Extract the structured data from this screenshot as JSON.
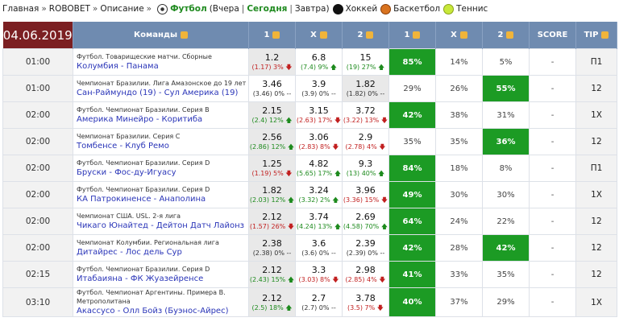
{
  "breadcrumbs": {
    "home": "Главная",
    "site": "ROBOBET",
    "desc": "Описание",
    "football": "Футбол",
    "yesterday": "Вчера",
    "today": "Сегодня",
    "tomorrow": "Завтра",
    "hockey": "Хоккей",
    "basketball": "Баскетбол",
    "tennis": "Теннис",
    "sep": "»",
    "bar": "|",
    "lparen": "(",
    "rparen": ")"
  },
  "header": {
    "date": "04.06.2019",
    "teams": "Команды",
    "o1": "1",
    "ox": "X",
    "o2": "2",
    "p1": "1",
    "px": "X",
    "p2": "2",
    "score": "SCORE",
    "tip": "TIP"
  },
  "rows": [
    {
      "time": "01:00",
      "league": "Футбол. Товарищеские матчи. Сборные",
      "teams": "Колумбия - Панама",
      "o1": "1.2",
      "o1s": "(1.17) 3%",
      "o1d": "down",
      "ox": "6.8",
      "oxs": "(7.4) 9%",
      "oxd": "up",
      "o2": "15",
      "o2s": "(19) 27%",
      "o2d": "up",
      "p1": "85%",
      "px": "14%",
      "p2": "5%",
      "hl": "1",
      "score": "-",
      "tip": "П1",
      "fav": "1"
    },
    {
      "time": "01:00",
      "league": "Чемпионат Бразилии. Лига Амазонское до 19 лет",
      "teams": "Сан-Раймундо (19) - Сул Америка (19)",
      "o1": "3.46",
      "o1s": "(3.46) 0% --",
      "o1d": "flat",
      "ox": "3.9",
      "oxs": "(3.9) 0% --",
      "oxd": "flat",
      "o2": "1.82",
      "o2s": "(1.82) 0% --",
      "o2d": "flat",
      "p1": "29%",
      "px": "26%",
      "p2": "55%",
      "hl": "2",
      "score": "-",
      "tip": "12",
      "fav": "2"
    },
    {
      "time": "02:00",
      "league": "Футбол. Чемпионат Бразилии. Серия B",
      "teams": "Америка Минейро - Коритиба",
      "o1": "2.15",
      "o1s": "(2.4) 12%",
      "o1d": "up",
      "ox": "3.15",
      "oxs": "(2.63) 17%",
      "oxd": "down",
      "o2": "3.72",
      "o2s": "(3.22) 13%",
      "o2d": "down",
      "p1": "42%",
      "px": "38%",
      "p2": "31%",
      "hl": "1",
      "score": "-",
      "tip": "1X",
      "fav": "1"
    },
    {
      "time": "02:00",
      "league": "Чемпионат Бразилии. Серия C",
      "teams": "Томбенсе - Клуб Ремо",
      "o1": "2.56",
      "o1s": "(2.86) 12%",
      "o1d": "up",
      "ox": "3.06",
      "oxs": "(2.83) 8%",
      "oxd": "down",
      "o2": "2.9",
      "o2s": "(2.78) 4%",
      "o2d": "down",
      "p1": "35%",
      "px": "35%",
      "p2": "36%",
      "hl": "2",
      "score": "-",
      "tip": "12",
      "fav": "1"
    },
    {
      "time": "02:00",
      "league": "Футбол. Чемпионат Бразилии. Серия D",
      "teams": "Бруски - Фос-ду-Игуасу",
      "o1": "1.25",
      "o1s": "(1.19) 5%",
      "o1d": "down",
      "ox": "4.82",
      "oxs": "(5.65) 17%",
      "oxd": "up",
      "o2": "9.3",
      "o2s": "(13) 40%",
      "o2d": "up",
      "p1": "84%",
      "px": "18%",
      "p2": "8%",
      "hl": "1",
      "score": "-",
      "tip": "П1",
      "fav": "1"
    },
    {
      "time": "02:00",
      "league": "Футбол. Чемпионат Бразилии. Серия D",
      "teams": "КА Патрокиненсе - Анаполина",
      "o1": "1.82",
      "o1s": "(2.03) 12%",
      "o1d": "up",
      "ox": "3.24",
      "oxs": "(3.32) 2%",
      "oxd": "up",
      "o2": "3.96",
      "o2s": "(3.36) 15%",
      "o2d": "down",
      "p1": "49%",
      "px": "30%",
      "p2": "30%",
      "hl": "1",
      "score": "-",
      "tip": "1X",
      "fav": "1"
    },
    {
      "time": "02:00",
      "league": "Чемпионат США. USL. 2-я лига",
      "teams": "Чикаго Юнайтед - Дейтон Датч Лайонз",
      "o1": "2.12",
      "o1s": "(1.57) 26%",
      "o1d": "down",
      "ox": "3.74",
      "oxs": "(4.24) 13%",
      "oxd": "up",
      "o2": "2.69",
      "o2s": "(4.58) 70%",
      "o2d": "up",
      "p1": "64%",
      "px": "24%",
      "p2": "22%",
      "hl": "1",
      "score": "-",
      "tip": "12",
      "fav": "1"
    },
    {
      "time": "02:00",
      "league": "Чемпионат Колумбии. Региональная лига",
      "teams": "Дитайрес - Лос дель Сур",
      "o1": "2.38",
      "o1s": "(2.38) 0% --",
      "o1d": "flat",
      "ox": "3.6",
      "oxs": "(3.6) 0% --",
      "oxd": "flat",
      "o2": "2.39",
      "o2s": "(2.39) 0% --",
      "o2d": "flat",
      "p1": "42%",
      "px": "28%",
      "p2": "42%",
      "hl": "12",
      "score": "-",
      "tip": "12",
      "fav": "1"
    },
    {
      "time": "02:15",
      "league": "Футбол. Чемпионат Бразилии. Серия D",
      "teams": "Итабаияна - ФК Жуазейренсе",
      "o1": "2.12",
      "o1s": "(2.43) 15%",
      "o1d": "up",
      "ox": "3.3",
      "oxs": "(3.03) 8%",
      "oxd": "down",
      "o2": "2.98",
      "o2s": "(2.85) 4%",
      "o2d": "down",
      "p1": "41%",
      "px": "33%",
      "p2": "35%",
      "hl": "1",
      "score": "-",
      "tip": "12",
      "fav": "1"
    },
    {
      "time": "03:10",
      "league": "Футбол. Чемпионат Аргентины. Примера B. Метрополитана",
      "teams": "Акассусо - Олл Бойз (Буэнос-Айрес)",
      "o1": "2.12",
      "o1s": "(2.5) 18%",
      "o1d": "up",
      "ox": "2.7",
      "oxs": "(2.7) 0% --",
      "oxd": "flat",
      "o2": "3.78",
      "o2s": "(3.5) 7%",
      "o2d": "down",
      "p1": "40%",
      "px": "37%",
      "p2": "29%",
      "hl": "1",
      "score": "-",
      "tip": "1X",
      "fav": "1"
    }
  ]
}
